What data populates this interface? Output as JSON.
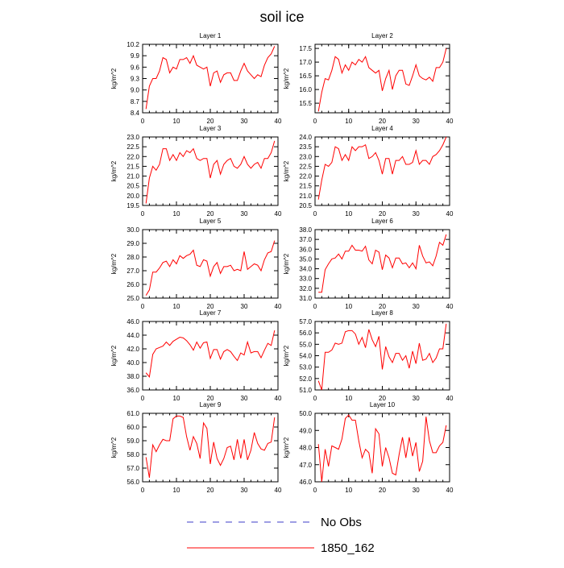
{
  "title": "soil ice",
  "legend": [
    {
      "name": "No Obs",
      "color": "#3c3cc8",
      "dashed": true
    },
    {
      "name": "1850_162",
      "color": "#ff0000",
      "dashed": false
    }
  ],
  "chart_data": [
    {
      "type": "line",
      "title": "Layer 1",
      "y_label": "kg/m^2",
      "x": [
        1,
        2,
        3,
        4,
        5,
        6,
        7,
        8,
        9,
        10,
        11,
        12,
        13,
        14,
        15,
        16,
        17,
        18,
        19,
        20,
        21,
        22,
        23,
        24,
        25,
        26,
        27,
        28,
        29,
        30,
        31,
        32,
        33,
        34,
        35,
        36,
        37,
        38,
        39
      ],
      "values": [
        8.5,
        9.1,
        9.3,
        9.3,
        9.5,
        9.85,
        9.8,
        9.45,
        9.6,
        9.55,
        9.8,
        9.8,
        9.85,
        9.7,
        9.9,
        9.65,
        9.6,
        9.55,
        9.6,
        9.1,
        9.45,
        9.5,
        9.2,
        9.4,
        9.45,
        9.45,
        9.25,
        9.25,
        9.5,
        9.7,
        9.5,
        9.4,
        9.3,
        9.4,
        9.35,
        9.65,
        9.85,
        9.95,
        10.15
      ],
      "xlim": [
        0,
        40
      ],
      "xticks": [
        0,
        10,
        20,
        30,
        40
      ],
      "ylim": [
        8.4,
        10.2
      ],
      "yticks": [
        8.4,
        8.7,
        {
          "value": 9,
          "label": "9.0"
        },
        9.3,
        9.6,
        9.9,
        10.2
      ]
    },
    {
      "type": "line",
      "title": "Layer 2",
      "y_label": "kg/m^2",
      "x": [
        1,
        2,
        3,
        4,
        5,
        6,
        7,
        8,
        9,
        10,
        11,
        12,
        13,
        14,
        15,
        16,
        17,
        18,
        19,
        20,
        21,
        22,
        23,
        24,
        25,
        26,
        27,
        28,
        29,
        30,
        31,
        32,
        33,
        34,
        35,
        36,
        37,
        38,
        39
      ],
      "values": [
        15.2,
        15.9,
        16.4,
        16.35,
        16.7,
        17.2,
        17.1,
        16.6,
        16.9,
        16.7,
        17.0,
        16.9,
        17.1,
        17.0,
        17.2,
        16.8,
        16.7,
        16.6,
        16.7,
        15.95,
        16.4,
        16.7,
        16.0,
        16.5,
        16.7,
        16.7,
        16.2,
        16.15,
        16.5,
        16.9,
        16.5,
        16.4,
        16.35,
        16.45,
        16.3,
        16.8,
        16.8,
        17.0,
        17.5
      ],
      "xlim": [
        0,
        40
      ],
      "xticks": [
        0,
        10,
        20,
        30,
        40
      ],
      "ylim": [
        15.15,
        17.65
      ],
      "yticks": [
        15.5,
        {
          "value": 16,
          "label": "16.0"
        },
        16.5,
        {
          "value": 17,
          "label": "17.0"
        },
        17.5
      ]
    },
    {
      "type": "line",
      "title": "Layer 3",
      "y_label": "kg/m^2",
      "x": [
        1,
        2,
        3,
        4,
        5,
        6,
        7,
        8,
        9,
        10,
        11,
        12,
        13,
        14,
        15,
        16,
        17,
        18,
        19,
        20,
        21,
        22,
        23,
        24,
        25,
        26,
        27,
        28,
        29,
        30,
        31,
        32,
        33,
        34,
        35,
        36,
        37,
        38,
        39
      ],
      "values": [
        19.6,
        20.9,
        21.5,
        21.3,
        21.6,
        22.4,
        22.4,
        21.8,
        22.1,
        21.8,
        22.2,
        22.0,
        22.3,
        22.2,
        22.4,
        21.9,
        21.8,
        21.9,
        21.9,
        20.9,
        21.6,
        21.8,
        21.1,
        21.6,
        21.8,
        21.9,
        21.5,
        21.4,
        21.6,
        22.0,
        21.6,
        21.4,
        21.6,
        21.7,
        21.4,
        21.9,
        21.9,
        22.2,
        22.8
      ],
      "xlim": [
        0,
        40
      ],
      "xticks": [
        0,
        10,
        20,
        30,
        40
      ],
      "ylim": [
        19.5,
        23
      ],
      "yticks": [
        19.5,
        {
          "value": 20,
          "label": "20.0"
        },
        20.5,
        {
          "value": 21,
          "label": "21.0"
        },
        21.5,
        {
          "value": 22,
          "label": "22.0"
        },
        22.5,
        {
          "value": 23,
          "label": "23.0"
        }
      ]
    },
    {
      "type": "line",
      "title": "Layer 4",
      "y_label": "kg/m^2",
      "x": [
        1,
        2,
        3,
        4,
        5,
        6,
        7,
        8,
        9,
        10,
        11,
        12,
        13,
        14,
        15,
        16,
        17,
        18,
        19,
        20,
        21,
        22,
        23,
        24,
        25,
        26,
        27,
        28,
        29,
        30,
        31,
        32,
        33,
        34,
        35,
        36,
        37,
        38,
        39
      ],
      "values": [
        20.8,
        21.8,
        22.6,
        22.5,
        22.7,
        23.5,
        23.4,
        22.8,
        23.1,
        22.8,
        23.5,
        23.3,
        23.5,
        23.5,
        23.6,
        22.9,
        23.0,
        23.2,
        22.8,
        22.1,
        22.9,
        22.9,
        22.1,
        22.8,
        22.8,
        23.0,
        22.6,
        22.6,
        22.7,
        23.3,
        22.6,
        22.8,
        22.8,
        22.6,
        23.0,
        23.1,
        23.3,
        23.6,
        24.0
      ],
      "xlim": [
        0,
        40
      ],
      "xticks": [
        0,
        10,
        20,
        30,
        40
      ],
      "ylim": [
        20.5,
        24
      ],
      "yticks": [
        20.5,
        {
          "value": 21,
          "label": "21.0"
        },
        21.5,
        {
          "value": 22,
          "label": "22.0"
        },
        22.5,
        {
          "value": 23,
          "label": "23.0"
        },
        23.5,
        {
          "value": 24,
          "label": "24.0"
        }
      ]
    },
    {
      "type": "line",
      "title": "Layer 5",
      "y_label": "kg/m^2",
      "x": [
        1,
        2,
        3,
        4,
        5,
        6,
        7,
        8,
        9,
        10,
        11,
        12,
        13,
        14,
        15,
        16,
        17,
        18,
        19,
        20,
        21,
        22,
        23,
        24,
        25,
        26,
        27,
        28,
        29,
        30,
        31,
        32,
        33,
        34,
        35,
        36,
        37,
        38,
        39
      ],
      "values": [
        25.2,
        25.6,
        26.9,
        26.9,
        27.2,
        27.6,
        27.7,
        27.3,
        27.8,
        27.5,
        28.1,
        27.9,
        28.1,
        28.2,
        28.5,
        27.4,
        27.3,
        27.8,
        27.7,
        26.6,
        27.3,
        27.6,
        26.8,
        27.3,
        27.3,
        27.4,
        27.0,
        27.1,
        27.0,
        28.4,
        27.1,
        27.3,
        27.5,
        27.4,
        27.0,
        27.8,
        28.3,
        28.4,
        29.2
      ],
      "xlim": [
        0,
        40
      ],
      "xticks": [
        0,
        10,
        20,
        30,
        40
      ],
      "ylim": [
        25,
        30
      ],
      "yticks": [
        {
          "value": 25,
          "label": "25.0"
        },
        {
          "value": 26,
          "label": "26.0"
        },
        {
          "value": 27,
          "label": "27.0"
        },
        {
          "value": 28,
          "label": "28.0"
        },
        {
          "value": 29,
          "label": "29.0"
        },
        {
          "value": 30,
          "label": "30.0"
        }
      ]
    },
    {
      "type": "line",
      "title": "Layer 6",
      "y_label": "kg/m^2",
      "x": [
        1,
        2,
        3,
        4,
        5,
        6,
        7,
        8,
        9,
        10,
        11,
        12,
        13,
        14,
        15,
        16,
        17,
        18,
        19,
        20,
        21,
        22,
        23,
        24,
        25,
        26,
        27,
        28,
        29,
        30,
        31,
        32,
        33,
        34,
        35,
        36,
        37,
        38,
        39
      ],
      "values": [
        31.6,
        31.6,
        33.9,
        34.5,
        35.0,
        35.1,
        35.5,
        35.0,
        35.8,
        35.8,
        36.4,
        35.9,
        35.9,
        35.8,
        36.3,
        34.9,
        34.5,
        35.9,
        35.7,
        33.9,
        35.4,
        35.1,
        34.1,
        35.1,
        35.1,
        34.5,
        34.6,
        34.1,
        34.6,
        34.0,
        36.4,
        35.3,
        34.6,
        34.7,
        34.3,
        35.3,
        36.7,
        36.4,
        37.5
      ],
      "xlim": [
        0,
        40
      ],
      "xticks": [
        0,
        10,
        20,
        30,
        40
      ],
      "ylim": [
        31,
        38
      ],
      "yticks": [
        {
          "value": 31,
          "label": "31.0"
        },
        {
          "value": 32,
          "label": "32.0"
        },
        {
          "value": 33,
          "label": "33.0"
        },
        {
          "value": 34,
          "label": "34.0"
        },
        {
          "value": 35,
          "label": "35.0"
        },
        {
          "value": 36,
          "label": "36.0"
        },
        {
          "value": 37,
          "label": "37.0"
        },
        {
          "value": 38,
          "label": "38.0"
        }
      ]
    },
    {
      "type": "line",
      "title": "Layer 7",
      "y_label": "kg/m^2",
      "x": [
        1,
        2,
        3,
        4,
        5,
        6,
        7,
        8,
        9,
        10,
        11,
        12,
        13,
        14,
        15,
        16,
        17,
        18,
        19,
        20,
        21,
        22,
        23,
        24,
        25,
        26,
        27,
        28,
        29,
        30,
        31,
        32,
        33,
        34,
        35,
        36,
        37,
        38,
        39
      ],
      "values": [
        38.5,
        37.9,
        41.2,
        42.0,
        42.2,
        42.4,
        43.0,
        42.5,
        43.1,
        43.4,
        43.7,
        43.6,
        43.2,
        42.6,
        41.8,
        43.0,
        42.1,
        42.9,
        43.0,
        40.6,
        41.9,
        41.9,
        40.5,
        41.6,
        41.9,
        41.6,
        40.9,
        40.3,
        41.4,
        41.1,
        43.0,
        41.4,
        41.6,
        41.6,
        40.7,
        41.8,
        42.8,
        42.5,
        44.7
      ],
      "xlim": [
        0,
        40
      ],
      "xticks": [
        0,
        10,
        20,
        30,
        40
      ],
      "ylim": [
        36,
        46
      ],
      "yticks": [
        {
          "value": 36,
          "label": "36.0"
        },
        {
          "value": 38,
          "label": "38.0"
        },
        {
          "value": 40,
          "label": "40.0"
        },
        {
          "value": 42,
          "label": "42.0"
        },
        {
          "value": 44,
          "label": "44.0"
        },
        {
          "value": 46,
          "label": "46.0"
        }
      ]
    },
    {
      "type": "line",
      "title": "Layer 8",
      "y_label": "kg/m^2",
      "x": [
        1,
        2,
        3,
        4,
        5,
        6,
        7,
        8,
        9,
        10,
        11,
        12,
        13,
        14,
        15,
        16,
        17,
        18,
        19,
        20,
        21,
        22,
        23,
        24,
        25,
        26,
        27,
        28,
        29,
        30,
        31,
        32,
        33,
        34,
        35,
        36,
        37,
        38,
        39
      ],
      "values": [
        51.8,
        51.0,
        54.3,
        54.3,
        54.5,
        55.1,
        55.0,
        55.1,
        56.1,
        56.2,
        56.2,
        55.9,
        55.0,
        55.6,
        54.7,
        56.3,
        55.4,
        54.8,
        55.7,
        52.8,
        54.8,
        53.9,
        53.4,
        54.2,
        54.2,
        53.6,
        54.0,
        52.9,
        54.4,
        53.3,
        55.1,
        53.6,
        53.7,
        54.2,
        53.4,
        53.8,
        54.6,
        54.6,
        56.8
      ],
      "xlim": [
        0,
        40
      ],
      "xticks": [
        0,
        10,
        20,
        30,
        40
      ],
      "ylim": [
        51,
        57
      ],
      "yticks": [
        {
          "value": 51,
          "label": "51.0"
        },
        {
          "value": 52,
          "label": "52.0"
        },
        {
          "value": 53,
          "label": "53.0"
        },
        {
          "value": 54,
          "label": "54.0"
        },
        {
          "value": 55,
          "label": "55.0"
        },
        {
          "value": 56,
          "label": "56.0"
        },
        {
          "value": 57,
          "label": "57.0"
        }
      ]
    },
    {
      "type": "line",
      "title": "Layer 9",
      "y_label": "kg/m^2",
      "x": [
        1,
        2,
        3,
        4,
        5,
        6,
        7,
        8,
        9,
        10,
        11,
        12,
        13,
        14,
        15,
        16,
        17,
        18,
        19,
        20,
        21,
        22,
        23,
        24,
        25,
        26,
        27,
        28,
        29,
        30,
        31,
        32,
        33,
        34,
        35,
        36,
        37,
        38,
        39
      ],
      "values": [
        57.8,
        56.3,
        58.7,
        58.2,
        58.7,
        59.1,
        59.0,
        59.0,
        60.6,
        60.8,
        60.8,
        60.7,
        59.3,
        58.3,
        59.3,
        58.8,
        57.7,
        60.3,
        59.9,
        57.3,
        58.9,
        57.7,
        57.2,
        57.7,
        58.5,
        58.6,
        57.6,
        59.1,
        57.7,
        59.1,
        57.6,
        58.3,
        59.6,
        58.8,
        58.4,
        58.3,
        58.8,
        58.9,
        60.7
      ],
      "xlim": [
        0,
        40
      ],
      "xticks": [
        0,
        10,
        20,
        30,
        40
      ],
      "ylim": [
        56,
        61
      ],
      "yticks": [
        {
          "value": 56,
          "label": "56.0"
        },
        {
          "value": 57,
          "label": "57.0"
        },
        {
          "value": 58,
          "label": "58.0"
        },
        {
          "value": 59,
          "label": "59.0"
        },
        {
          "value": 60,
          "label": "60.0"
        },
        {
          "value": 61,
          "label": "61.0"
        }
      ]
    },
    {
      "type": "line",
      "title": "Layer 10",
      "y_label": "kg/m^2",
      "x": [
        1,
        2,
        3,
        4,
        5,
        6,
        7,
        8,
        9,
        10,
        11,
        12,
        13,
        14,
        15,
        16,
        17,
        18,
        19,
        20,
        21,
        22,
        23,
        24,
        25,
        26,
        27,
        28,
        29,
        30,
        31,
        32,
        33,
        34,
        35,
        36,
        37,
        38,
        39
      ],
      "values": [
        48.2,
        46.0,
        47.9,
        46.9,
        48.1,
        48.0,
        47.9,
        48.5,
        49.7,
        49.9,
        49.6,
        49.6,
        48.4,
        47.4,
        47.9,
        47.7,
        46.5,
        49.1,
        48.8,
        46.9,
        48.0,
        47.4,
        46.5,
        46.4,
        47.6,
        48.6,
        47.4,
        48.6,
        47.5,
        48.3,
        46.6,
        47.2,
        49.8,
        48.4,
        47.7,
        47.7,
        48.1,
        48.3,
        49.3
      ],
      "xlim": [
        0,
        40
      ],
      "xticks": [
        0,
        10,
        20,
        30,
        40
      ],
      "ylim": [
        46,
        50
      ],
      "yticks": [
        {
          "value": 46,
          "label": "46.0"
        },
        {
          "value": 47,
          "label": "47.0"
        },
        {
          "value": 48,
          "label": "48.0"
        },
        {
          "value": 49,
          "label": "49.0"
        },
        {
          "value": 50,
          "label": "50.0"
        }
      ]
    }
  ]
}
